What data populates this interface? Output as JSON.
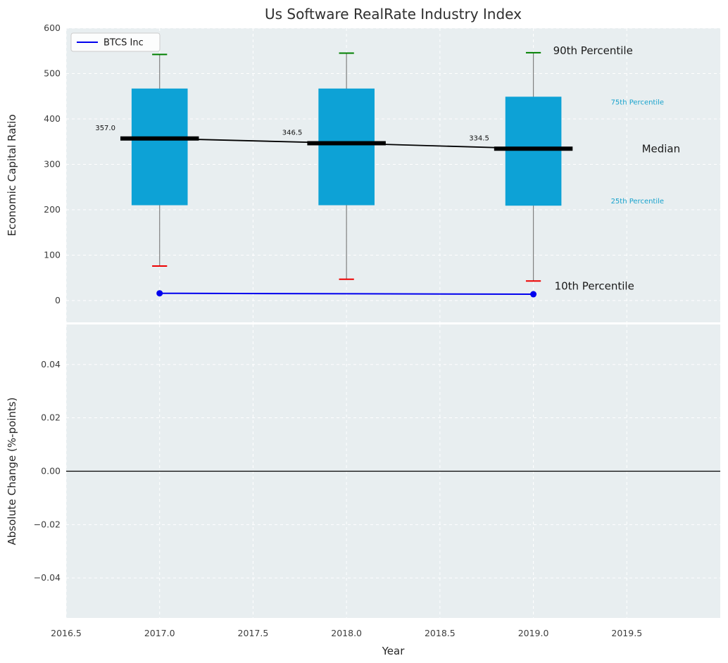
{
  "title": "Us Software RealRate Industry Index",
  "chart_data": [
    {
      "type": "box",
      "subplot": "top",
      "title": "Us Software RealRate Industry Index",
      "ylabel": "Economic Capital Ratio",
      "xlabel": "",
      "ylim": [
        -48,
        600
      ],
      "xlim": [
        2016.5,
        2020.0
      ],
      "grid": true,
      "yticks": [
        0,
        100,
        200,
        300,
        400,
        500,
        600
      ],
      "yticklabels": [
        "0",
        "100",
        "200",
        "300",
        "400",
        "500",
        "600"
      ],
      "categories": [
        2017,
        2018,
        2019
      ],
      "box_stats": {
        "p90": [
          542,
          545,
          546
        ],
        "p75": [
          467,
          467,
          449
        ],
        "median": [
          357.0,
          346.5,
          334.5
        ],
        "p25": [
          210,
          210,
          209
        ],
        "p10": [
          76,
          47,
          43
        ]
      },
      "median_labels": [
        "357.0",
        "346.5",
        "334.5"
      ],
      "series": [
        {
          "name": "BTCS Inc",
          "type": "line",
          "x": [
            2017,
            2019
          ],
          "y": [
            16,
            14
          ],
          "color": "#0000ee",
          "marker": "circle"
        }
      ],
      "legend": {
        "position": "upper left",
        "entries": [
          {
            "label": "BTCS Inc",
            "color": "#0000ee"
          }
        ]
      },
      "annotations": [
        {
          "text": "90th Percentile",
          "color": "#1a1a1a",
          "size": 15
        },
        {
          "text": "75th Percentile",
          "color": "#17a2cc",
          "size": 10
        },
        {
          "text": "Median",
          "color": "#1a1a1a",
          "size": 15
        },
        {
          "text": "25th Percentile",
          "color": "#17a2cc",
          "size": 10
        },
        {
          "text": "10th Percentile",
          "color": "#1a1a1a",
          "size": 15
        }
      ],
      "colors": {
        "box": "#0da2d6",
        "whisker": "#808080",
        "cap_top": "#008000",
        "cap_bottom": "#ee0000",
        "median": "#000000",
        "plot_bg": "#e8eef0",
        "grid": "#ffffff"
      }
    },
    {
      "type": "line",
      "subplot": "bottom",
      "ylabel": "Absolute Change (%-points)",
      "xlabel": "Year",
      "ylim": [
        -0.055,
        0.055
      ],
      "xlim": [
        2016.5,
        2020.0
      ],
      "grid": true,
      "yticks": [
        -0.04,
        -0.02,
        0,
        0.02,
        0.04
      ],
      "yticklabels": [
        "−0.04",
        "−0.02",
        "0.00",
        "0.02",
        "0.04"
      ],
      "xticks": [
        2016.5,
        2017,
        2017.5,
        2018,
        2018.5,
        2019,
        2019.5
      ],
      "xticklabels": [
        "2016.5",
        "2017.0",
        "2017.5",
        "2018.0",
        "2018.5",
        "2019.0",
        "2019.5"
      ],
      "zero_line": 0,
      "series": []
    }
  ]
}
